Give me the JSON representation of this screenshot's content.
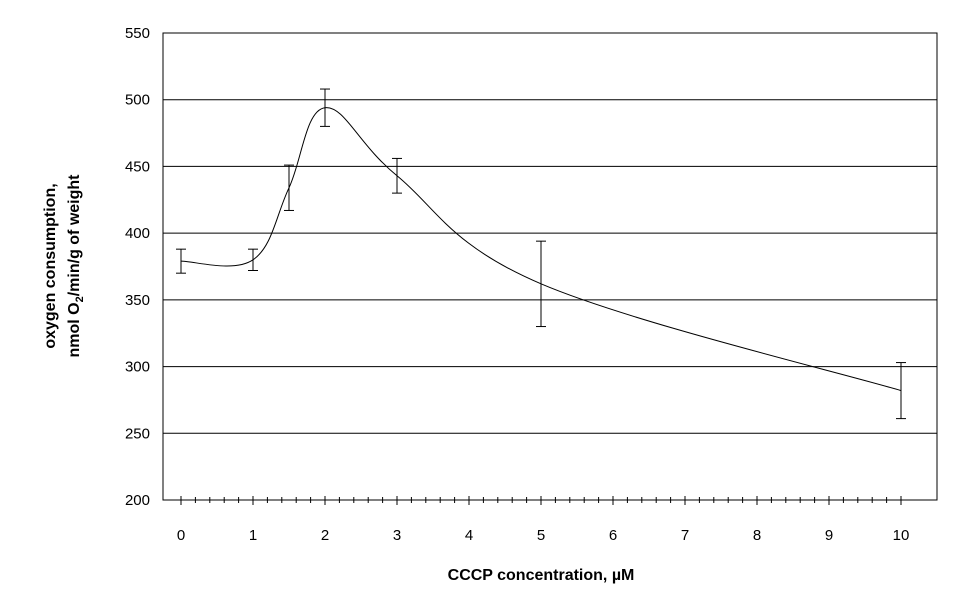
{
  "chart_data": {
    "type": "line",
    "title": "",
    "xlabel": "CCCP concentration, µM",
    "ylabel": {
      "line1": "oxygen consumption,",
      "line2_pre": "nmol O",
      "line2_sub": "2",
      "line2_post": "/min/g of weight"
    },
    "xlim": [
      0,
      10
    ],
    "ylim": [
      200,
      550
    ],
    "x_ticks": [
      0,
      1,
      2,
      3,
      4,
      5,
      6,
      7,
      8,
      9,
      10
    ],
    "x_tick_labels": [
      "0",
      "1",
      "2",
      "3",
      "4",
      "5",
      "6",
      "7",
      "8",
      "9",
      "10"
    ],
    "y_ticks": [
      200,
      250,
      300,
      350,
      400,
      450,
      500,
      550
    ],
    "y_tick_labels": [
      "200",
      "250",
      "300",
      "350",
      "400",
      "450",
      "500",
      "550"
    ],
    "x_minor_tick_step": 0.2,
    "grid": "horizontal",
    "legend": "none",
    "series": [
      {
        "x": [
          0,
          1,
          1.5,
          2,
          3,
          5,
          10
        ],
        "y": [
          379,
          380,
          434,
          494,
          443,
          362,
          282
        ],
        "error": [
          9,
          8,
          17,
          14,
          13,
          32,
          21
        ],
        "smooth": true,
        "color": "#000000"
      }
    ]
  }
}
